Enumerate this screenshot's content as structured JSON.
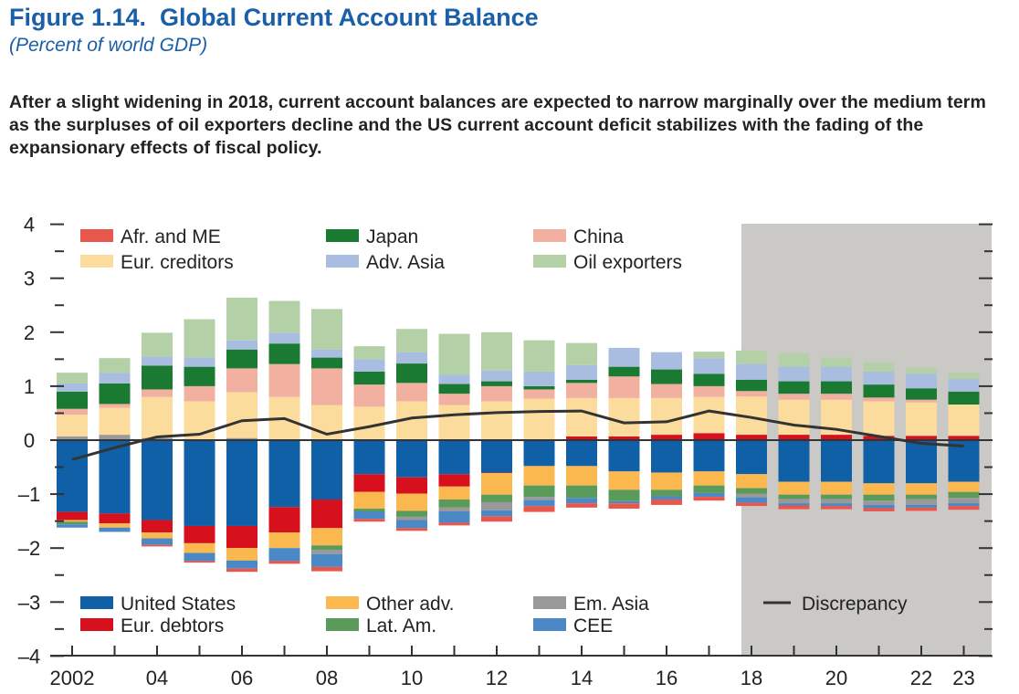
{
  "title": "Figure 1.14.  Global Current Account Balance",
  "subtitle": "(Percent of world GDP)",
  "description": "After a slight widening in 2018, current account balances are expected to narrow marginally over the medium term as the surpluses of oil exporters decline and the US current account deficit stabilizes with the fading of the expansionary effects of fiscal policy.",
  "chart_data": {
    "type": "bar",
    "stacked": true,
    "title": "Global Current Account Balance",
    "ylabel": "Percent of world GDP",
    "ylim": [
      -4,
      4
    ],
    "yticks": [
      {
        "v": 4,
        "label": "4"
      },
      {
        "v": 3,
        "label": "3"
      },
      {
        "v": 2,
        "label": "2"
      },
      {
        "v": 1,
        "label": "1"
      },
      {
        "v": 0,
        "label": "0"
      },
      {
        "v": -1,
        "label": "–1"
      },
      {
        "v": -2,
        "label": "–2"
      },
      {
        "v": -3,
        "label": "–3"
      },
      {
        "v": -4,
        "label": "–4"
      }
    ],
    "xticks": [
      {
        "v": 2002,
        "label": "2002"
      },
      {
        "v": 2004,
        "label": "04"
      },
      {
        "v": 2006,
        "label": "06"
      },
      {
        "v": 2008,
        "label": "08"
      },
      {
        "v": 2010,
        "label": "10"
      },
      {
        "v": 2012,
        "label": "12"
      },
      {
        "v": 2014,
        "label": "14"
      },
      {
        "v": 2016,
        "label": "16"
      },
      {
        "v": 2018,
        "label": "18"
      },
      {
        "v": 2020,
        "label": "20"
      },
      {
        "v": 2022,
        "label": "22"
      },
      {
        "v": 2023,
        "label": "23"
      }
    ],
    "projection_start": 2018,
    "x": [
      2002,
      2003,
      2004,
      2005,
      2006,
      2007,
      2008,
      2009,
      2010,
      2011,
      2012,
      2013,
      2014,
      2015,
      2016,
      2017,
      2018,
      2019,
      2020,
      2021,
      2022,
      2023
    ],
    "series": [
      {
        "name": "Afr. and ME",
        "color": "#e8574c",
        "values": [
          0,
          0,
          -0.03,
          -0.03,
          -0.06,
          -0.05,
          -0.08,
          -0.05,
          -0.05,
          -0.05,
          -0.1,
          -0.11,
          -0.08,
          -0.1,
          -0.1,
          -0.07,
          -0.06,
          -0.07,
          -0.06,
          -0.06,
          -0.06,
          -0.07
        ]
      },
      {
        "name": "Japan",
        "color": "#1a7a32",
        "values": [
          0.32,
          0.38,
          0.44,
          0.36,
          0.35,
          0.38,
          0.2,
          0.24,
          0.36,
          0.18,
          0.09,
          0.06,
          0.06,
          0.18,
          0.27,
          0.23,
          0.21,
          0.23,
          0.23,
          0.24,
          0.21,
          0.24
        ]
      },
      {
        "name": "China",
        "color": "#f2b0a0",
        "values": [
          0.11,
          0.07,
          0.14,
          0.28,
          0.44,
          0.61,
          0.68,
          0.41,
          0.34,
          0.21,
          0.28,
          0.17,
          0.28,
          0.4,
          0.26,
          0.2,
          0.1,
          0.11,
          0.11,
          0.07,
          0.05,
          0
        ]
      },
      {
        "name": "Eur. creditors",
        "color": "#fcdc9c",
        "values": [
          0.4,
          0.5,
          0.76,
          0.72,
          0.85,
          0.8,
          0.65,
          0.62,
          0.72,
          0.65,
          0.72,
          0.77,
          0.71,
          0.71,
          0.68,
          0.67,
          0.71,
          0.65,
          0.65,
          0.64,
          0.62,
          0.58
        ]
      },
      {
        "name": "Adv. Asia",
        "color": "#a9bde0",
        "values": [
          0.15,
          0.2,
          0.17,
          0.17,
          0.17,
          0.2,
          0.15,
          0.23,
          0.21,
          0.17,
          0.2,
          0.27,
          0.27,
          0.35,
          0.32,
          0.29,
          0.29,
          0.27,
          0.27,
          0.24,
          0.27,
          0.23
        ]
      },
      {
        "name": "Oil exporters",
        "color": "#b3d0a6",
        "values": [
          0.2,
          0.27,
          0.44,
          0.71,
          0.79,
          0.59,
          0.75,
          0.24,
          0.43,
          0.76,
          0.71,
          0.58,
          0.41,
          0,
          0,
          0.12,
          0.25,
          0.25,
          0.17,
          0.17,
          0.11,
          0.12
        ]
      },
      {
        "name": "United States",
        "color": "#1060a8",
        "values": [
          -1.33,
          -1.36,
          -1.48,
          -1.59,
          -1.59,
          -1.24,
          -1.1,
          -0.63,
          -0.69,
          -0.63,
          -0.6,
          -0.48,
          -0.48,
          -0.58,
          -0.6,
          -0.58,
          -0.63,
          -0.77,
          -0.77,
          -0.8,
          -0.8,
          -0.77
        ]
      },
      {
        "name": "Eur. debtors",
        "color": "#d7101e",
        "values": [
          -0.15,
          -0.18,
          -0.23,
          -0.32,
          -0.41,
          -0.47,
          -0.53,
          -0.33,
          -0.3,
          -0.23,
          -0.01,
          0,
          0.07,
          0.07,
          0.1,
          0.13,
          0.1,
          0.1,
          0.1,
          0.08,
          0.08,
          0.08
        ]
      },
      {
        "name": "Other adv.",
        "color": "#fbb84f",
        "values": [
          -0.03,
          -0.08,
          -0.11,
          -0.18,
          -0.23,
          -0.29,
          -0.32,
          -0.31,
          -0.32,
          -0.24,
          -0.4,
          -0.36,
          -0.36,
          -0.34,
          -0.32,
          -0.26,
          -0.26,
          -0.24,
          -0.24,
          -0.21,
          -0.21,
          -0.19
        ]
      },
      {
        "name": "Lat. Am.",
        "color": "#5a9a5a",
        "values": [
          -0.05,
          0,
          0,
          0,
          0,
          0,
          -0.08,
          -0.05,
          -0.11,
          -0.15,
          -0.14,
          -0.21,
          -0.23,
          -0.21,
          -0.12,
          -0.14,
          -0.1,
          -0.08,
          -0.08,
          -0.11,
          -0.08,
          -0.11
        ]
      },
      {
        "name": "Em. Asia",
        "color": "#999999",
        "values": [
          0.07,
          0.1,
          0.04,
          0,
          0.04,
          0,
          -0.08,
          0,
          -0.06,
          -0.07,
          -0.15,
          -0.06,
          0,
          0,
          0,
          0,
          -0.07,
          -0.08,
          -0.08,
          -0.08,
          -0.11,
          -0.1
        ]
      },
      {
        "name": "CEE",
        "color": "#4a88c6",
        "values": [
          -0.06,
          -0.08,
          -0.12,
          -0.15,
          -0.15,
          -0.24,
          -0.24,
          -0.14,
          -0.15,
          -0.21,
          -0.11,
          -0.11,
          -0.1,
          -0.04,
          -0.06,
          -0.07,
          -0.1,
          -0.04,
          -0.05,
          -0.06,
          -0.05,
          -0.05
        ]
      }
    ],
    "line": {
      "name": "Discrepancy",
      "color": "#333333",
      "values": [
        -0.36,
        -0.14,
        0.06,
        0.11,
        0.36,
        0.4,
        0.11,
        0.25,
        0.41,
        0.47,
        0.51,
        0.53,
        0.54,
        0.32,
        0.34,
        0.54,
        0.42,
        0.28,
        0.2,
        0.07,
        -0.06,
        -0.11
      ]
    },
    "legend_top": [
      "Afr. and ME",
      "Japan",
      "China",
      "Eur. creditors",
      "Adv. Asia",
      "Oil exporters"
    ],
    "legend_bottom": [
      "United States",
      "Other adv.",
      "Em. Asia",
      "Discrepancy",
      "Eur. debtors",
      "Lat. Am.",
      "CEE"
    ]
  }
}
